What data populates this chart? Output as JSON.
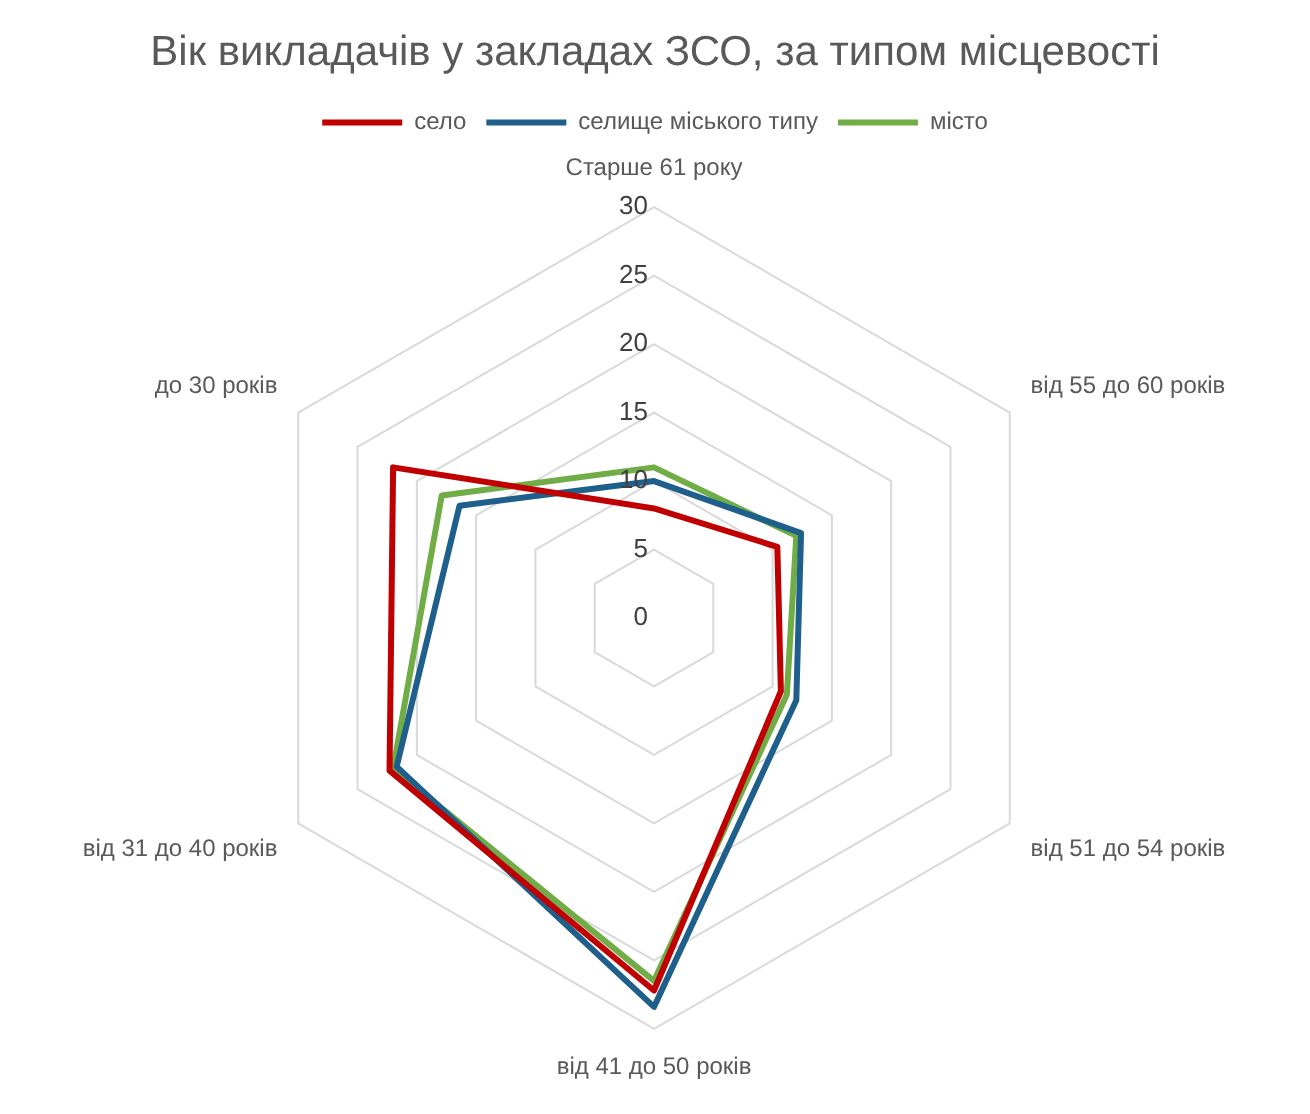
{
  "chart_data": {
    "type": "radar",
    "title": "Вік викладачів у закладах ЗСО, за типом місцевості",
    "categories": [
      "Старше 61 року",
      "від 55 до 60 років",
      "від 51 до 54 років",
      "від 41 до 50 років",
      "від 31 до 40 років",
      "до 30 років"
    ],
    "series": [
      {
        "name": "село",
        "color": "#c00000",
        "values": [
          8,
          10.4,
          10.7,
          27.2,
          22.3,
          22
        ]
      },
      {
        "name": "селище міського типу",
        "color": "#1f5f8b",
        "values": [
          10,
          12.4,
          12,
          28.4,
          21.7,
          16.4
        ]
      },
      {
        "name": "місто",
        "color": "#70ad47",
        "values": [
          11,
          12,
          11.2,
          26.5,
          22,
          17.9
        ]
      }
    ],
    "ylim": [
      0,
      30
    ],
    "yticks": [
      0,
      5,
      10,
      15,
      20,
      25,
      30
    ],
    "grid": true,
    "legend": "top",
    "marker": "none",
    "line_style": "solid"
  }
}
